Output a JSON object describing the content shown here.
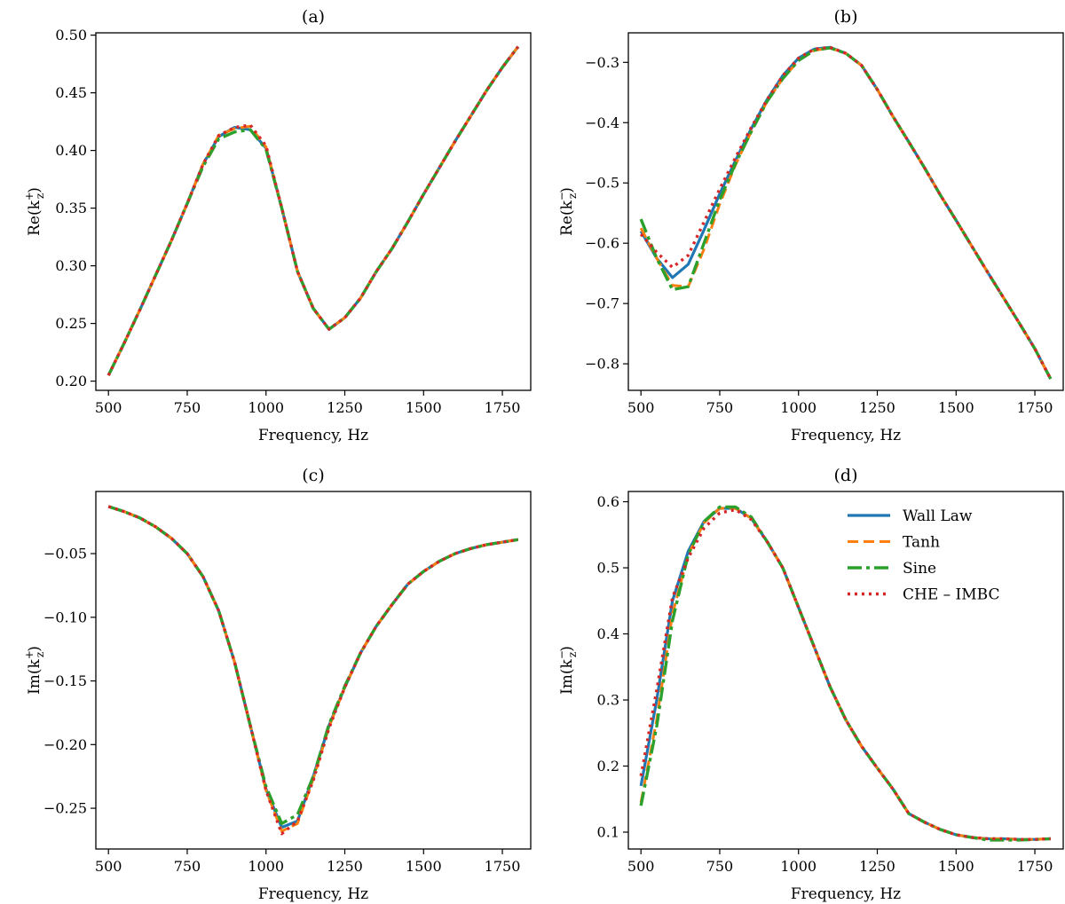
{
  "chart_data": [
    {
      "type": "line",
      "title": "(a)",
      "xlabel": "Frequency, Hz",
      "ylabel": "Re(k_z^+)",
      "ylabel_base": "Re(k",
      "ylabel_sub": "z",
      "ylabel_sup": "+",
      "ylabel_close": ")",
      "xlim": [
        460,
        1840
      ],
      "ylim": [
        0.192,
        0.502
      ],
      "xticks": [
        500,
        750,
        1000,
        1250,
        1500,
        1750
      ],
      "xtick_labels": [
        "500",
        "750",
        "1000",
        "1250",
        "1500",
        "1750"
      ],
      "yticks": [
        0.2,
        0.25,
        0.3,
        0.35,
        0.4,
        0.45,
        0.5
      ],
      "ytick_labels": [
        "0.20",
        "0.25",
        "0.30",
        "0.35",
        "0.40",
        "0.45",
        "0.50"
      ],
      "x": [
        500,
        550,
        600,
        650,
        700,
        750,
        800,
        850,
        900,
        950,
        1000,
        1050,
        1100,
        1150,
        1200,
        1250,
        1300,
        1350,
        1400,
        1450,
        1500,
        1550,
        1600,
        1650,
        1700,
        1750,
        1800
      ],
      "series": [
        {
          "name": "Wall Law",
          "values": [
            0.205,
            0.233,
            0.262,
            0.292,
            0.322,
            0.354,
            0.388,
            0.412,
            0.42,
            0.418,
            0.402,
            0.35,
            0.295,
            0.263,
            0.245,
            0.255,
            0.272,
            0.295,
            0.315,
            0.338,
            0.362,
            0.385,
            0.408,
            0.43,
            0.452,
            0.472,
            0.49
          ]
        },
        {
          "name": "Tanh",
          "values": [
            0.205,
            0.233,
            0.262,
            0.292,
            0.322,
            0.354,
            0.388,
            0.413,
            0.419,
            0.421,
            0.403,
            0.35,
            0.295,
            0.263,
            0.245,
            0.255,
            0.272,
            0.295,
            0.315,
            0.338,
            0.362,
            0.385,
            0.408,
            0.43,
            0.452,
            0.472,
            0.49
          ]
        },
        {
          "name": "Sine",
          "values": [
            0.205,
            0.233,
            0.262,
            0.292,
            0.322,
            0.354,
            0.386,
            0.41,
            0.416,
            0.418,
            0.401,
            0.35,
            0.295,
            0.263,
            0.245,
            0.255,
            0.272,
            0.295,
            0.315,
            0.338,
            0.362,
            0.385,
            0.408,
            0.43,
            0.452,
            0.472,
            0.49
          ]
        },
        {
          "name": "CHE – IMBC",
          "values": [
            0.205,
            0.233,
            0.262,
            0.292,
            0.322,
            0.354,
            0.388,
            0.413,
            0.42,
            0.422,
            0.404,
            0.35,
            0.295,
            0.263,
            0.245,
            0.255,
            0.272,
            0.295,
            0.315,
            0.338,
            0.362,
            0.385,
            0.408,
            0.43,
            0.452,
            0.472,
            0.49
          ]
        }
      ]
    },
    {
      "type": "line",
      "title": "(b)",
      "xlabel": "Frequency, Hz",
      "ylabel": "Re(k_z^−)",
      "ylabel_base": "Re(k",
      "ylabel_sub": "z",
      "ylabel_sup": "−",
      "ylabel_close": ")",
      "xlim": [
        460,
        1840
      ],
      "ylim": [
        -0.844,
        -0.251
      ],
      "xticks": [
        500,
        750,
        1000,
        1250,
        1500,
        1750
      ],
      "xtick_labels": [
        "500",
        "750",
        "1000",
        "1250",
        "1500",
        "1750"
      ],
      "yticks": [
        -0.8,
        -0.7,
        -0.6,
        -0.5,
        -0.4,
        -0.3
      ],
      "ytick_labels": [
        "−0.8",
        "−0.7",
        "−0.6",
        "−0.5",
        "−0.4",
        "−0.3"
      ],
      "x": [
        500,
        550,
        600,
        650,
        700,
        750,
        800,
        850,
        900,
        950,
        1000,
        1050,
        1100,
        1150,
        1200,
        1250,
        1300,
        1350,
        1400,
        1450,
        1500,
        1550,
        1600,
        1650,
        1700,
        1750,
        1800
      ],
      "series": [
        {
          "name": "Wall Law",
          "values": [
            -0.58,
            -0.625,
            -0.657,
            -0.635,
            -0.578,
            -0.518,
            -0.463,
            -0.41,
            -0.362,
            -0.322,
            -0.293,
            -0.278,
            -0.275,
            -0.285,
            -0.305,
            -0.345,
            -0.39,
            -0.432,
            -0.475,
            -0.52,
            -0.562,
            -0.605,
            -0.648,
            -0.69,
            -0.732,
            -0.775,
            -0.825
          ]
        },
        {
          "name": "Tanh",
          "values": [
            -0.575,
            -0.625,
            -0.67,
            -0.672,
            -0.61,
            -0.535,
            -0.47,
            -0.415,
            -0.365,
            -0.327,
            -0.297,
            -0.28,
            -0.276,
            -0.285,
            -0.305,
            -0.345,
            -0.39,
            -0.432,
            -0.475,
            -0.52,
            -0.562,
            -0.605,
            -0.648,
            -0.69,
            -0.732,
            -0.775,
            -0.825
          ]
        },
        {
          "name": "Sine",
          "values": [
            -0.56,
            -0.625,
            -0.677,
            -0.672,
            -0.6,
            -0.528,
            -0.468,
            -0.415,
            -0.365,
            -0.327,
            -0.297,
            -0.28,
            -0.276,
            -0.285,
            -0.305,
            -0.345,
            -0.39,
            -0.432,
            -0.475,
            -0.52,
            -0.562,
            -0.605,
            -0.648,
            -0.69,
            -0.732,
            -0.775,
            -0.825
          ]
        },
        {
          "name": "CHE – IMBC",
          "values": [
            -0.585,
            -0.615,
            -0.64,
            -0.62,
            -0.565,
            -0.51,
            -0.458,
            -0.408,
            -0.362,
            -0.322,
            -0.293,
            -0.278,
            -0.275,
            -0.285,
            -0.305,
            -0.345,
            -0.39,
            -0.432,
            -0.475,
            -0.52,
            -0.562,
            -0.605,
            -0.648,
            -0.69,
            -0.732,
            -0.775,
            -0.825
          ]
        }
      ]
    },
    {
      "type": "line",
      "title": "(c)",
      "xlabel": "Frequency, Hz",
      "ylabel": "Im(k_z^+)",
      "ylabel_base": "Im(k",
      "ylabel_sub": "z",
      "ylabel_sup": "+",
      "ylabel_close": ")",
      "xlim": [
        460,
        1840
      ],
      "ylim": [
        -0.282,
        -0.0012
      ],
      "xticks": [
        500,
        750,
        1000,
        1250,
        1500,
        1750
      ],
      "xtick_labels": [
        "500",
        "750",
        "1000",
        "1250",
        "1500",
        "1750"
      ],
      "yticks": [
        -0.25,
        -0.2,
        -0.15,
        -0.1,
        -0.05
      ],
      "ytick_labels": [
        "−0.25",
        "−0.20",
        "−0.15",
        "−0.10",
        "−0.05"
      ],
      "x": [
        500,
        550,
        600,
        650,
        700,
        750,
        800,
        850,
        900,
        950,
        1000,
        1050,
        1100,
        1150,
        1200,
        1250,
        1300,
        1350,
        1400,
        1450,
        1500,
        1550,
        1600,
        1650,
        1700,
        1750,
        1800
      ],
      "series": [
        {
          "name": "Wall Law",
          "values": [
            -0.013,
            -0.017,
            -0.022,
            -0.029,
            -0.038,
            -0.05,
            -0.068,
            -0.095,
            -0.135,
            -0.185,
            -0.235,
            -0.265,
            -0.26,
            -0.225,
            -0.185,
            -0.155,
            -0.128,
            -0.107,
            -0.09,
            -0.074,
            -0.064,
            -0.056,
            -0.05,
            -0.046,
            -0.043,
            -0.041,
            -0.039
          ]
        },
        {
          "name": "Tanh",
          "values": [
            -0.013,
            -0.017,
            -0.022,
            -0.029,
            -0.038,
            -0.05,
            -0.068,
            -0.095,
            -0.135,
            -0.185,
            -0.236,
            -0.268,
            -0.262,
            -0.227,
            -0.186,
            -0.155,
            -0.128,
            -0.107,
            -0.09,
            -0.074,
            -0.064,
            -0.056,
            -0.05,
            -0.046,
            -0.043,
            -0.041,
            -0.039
          ]
        },
        {
          "name": "Sine",
          "values": [
            -0.013,
            -0.017,
            -0.022,
            -0.029,
            -0.038,
            -0.05,
            -0.068,
            -0.095,
            -0.135,
            -0.185,
            -0.233,
            -0.262,
            -0.255,
            -0.225,
            -0.184,
            -0.154,
            -0.128,
            -0.107,
            -0.09,
            -0.074,
            -0.064,
            -0.056,
            -0.05,
            -0.046,
            -0.043,
            -0.041,
            -0.039
          ]
        },
        {
          "name": "CHE – IMBC",
          "values": [
            -0.013,
            -0.017,
            -0.022,
            -0.029,
            -0.038,
            -0.05,
            -0.068,
            -0.095,
            -0.135,
            -0.185,
            -0.236,
            -0.27,
            -0.26,
            -0.228,
            -0.187,
            -0.155,
            -0.128,
            -0.107,
            -0.09,
            -0.074,
            -0.064,
            -0.056,
            -0.05,
            -0.046,
            -0.043,
            -0.041,
            -0.039
          ]
        }
      ]
    },
    {
      "type": "line",
      "title": "(d)",
      "xlabel": "Frequency, Hz",
      "ylabel": "Im(k_z^−)",
      "ylabel_base": "Im(k",
      "ylabel_sub": "z",
      "ylabel_sup": "−",
      "ylabel_close": ")",
      "xlim": [
        460,
        1840
      ],
      "ylim": [
        0.0745,
        0.6155
      ],
      "xticks": [
        500,
        750,
        1000,
        1250,
        1500,
        1750
      ],
      "xtick_labels": [
        "500",
        "750",
        "1000",
        "1250",
        "1500",
        "1750"
      ],
      "yticks": [
        0.1,
        0.2,
        0.3,
        0.4,
        0.5,
        0.6
      ],
      "ytick_labels": [
        "0.1",
        "0.2",
        "0.3",
        "0.4",
        "0.5",
        "0.6"
      ],
      "legend_position": "top-right",
      "x": [
        500,
        550,
        600,
        650,
        700,
        750,
        800,
        850,
        900,
        950,
        1000,
        1050,
        1100,
        1150,
        1200,
        1250,
        1300,
        1350,
        1400,
        1450,
        1500,
        1550,
        1600,
        1650,
        1700,
        1750,
        1800
      ],
      "series": [
        {
          "name": "Wall Law",
          "values": [
            0.17,
            0.3,
            0.45,
            0.525,
            0.57,
            0.59,
            0.59,
            0.575,
            0.54,
            0.5,
            0.44,
            0.38,
            0.32,
            0.27,
            0.23,
            0.197,
            0.165,
            0.128,
            0.115,
            0.104,
            0.096,
            0.092,
            0.09,
            0.09,
            0.089,
            0.089,
            0.09
          ]
        },
        {
          "name": "Tanh",
          "values": [
            0.145,
            0.27,
            0.43,
            0.52,
            0.568,
            0.59,
            0.59,
            0.575,
            0.54,
            0.5,
            0.44,
            0.38,
            0.32,
            0.27,
            0.23,
            0.197,
            0.165,
            0.128,
            0.115,
            0.104,
            0.096,
            0.092,
            0.09,
            0.09,
            0.089,
            0.089,
            0.09
          ]
        },
        {
          "name": "Sine",
          "values": [
            0.14,
            0.26,
            0.42,
            0.52,
            0.57,
            0.592,
            0.592,
            0.577,
            0.54,
            0.5,
            0.44,
            0.38,
            0.32,
            0.27,
            0.23,
            0.197,
            0.165,
            0.128,
            0.115,
            0.104,
            0.096,
            0.092,
            0.088,
            0.088,
            0.088,
            0.089,
            0.09
          ]
        },
        {
          "name": "CHE – IMBC",
          "values": [
            0.185,
            0.315,
            0.455,
            0.515,
            0.56,
            0.583,
            0.588,
            0.573,
            0.54,
            0.5,
            0.44,
            0.38,
            0.32,
            0.27,
            0.23,
            0.197,
            0.165,
            0.128,
            0.115,
            0.104,
            0.096,
            0.092,
            0.09,
            0.09,
            0.089,
            0.089,
            0.09
          ]
        }
      ]
    }
  ],
  "legend": {
    "items": [
      "Wall Law",
      "Tanh",
      "Sine",
      "CHE – IMBC"
    ],
    "colors": [
      "#1f77b4",
      "#ff7f0e",
      "#2ca02c",
      "#d62728"
    ]
  }
}
